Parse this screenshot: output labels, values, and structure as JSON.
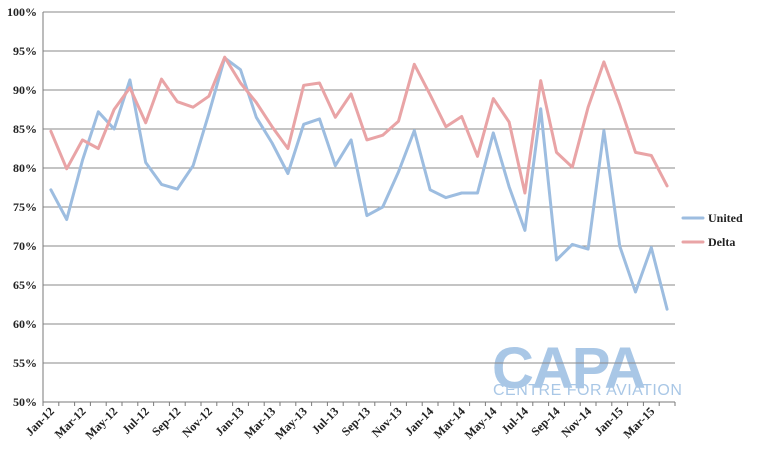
{
  "chart_data": {
    "type": "line",
    "categories": [
      "Jan-12",
      "Feb-12",
      "Mar-12",
      "Apr-12",
      "May-12",
      "Jun-12",
      "Jul-12",
      "Aug-12",
      "Sep-12",
      "Oct-12",
      "Nov-12",
      "Dec-12",
      "Jan-13",
      "Feb-13",
      "Mar-13",
      "Apr-13",
      "May-13",
      "Jun-13",
      "Jul-13",
      "Aug-13",
      "Sep-13",
      "Oct-13",
      "Nov-13",
      "Dec-13",
      "Jan-14",
      "Feb-14",
      "Mar-14",
      "Apr-14",
      "May-14",
      "Jun-14",
      "Jul-14",
      "Aug-14",
      "Sep-14",
      "Oct-14",
      "Nov-14",
      "Dec-14",
      "Jan-15",
      "Feb-15",
      "Mar-15",
      "Apr-15"
    ],
    "x_tick_labels": [
      "Jan-12",
      "Mar-12",
      "May-12",
      "Jul-12",
      "Sep-12",
      "Nov-12",
      "Jan-13",
      "Mar-13",
      "May-13",
      "Jul-13",
      "Sep-13",
      "Nov-13",
      "Jan-14",
      "Mar-14",
      "May-14",
      "Jul-14",
      "Sep-14",
      "Nov-14",
      "Jan-15",
      "Mar-15"
    ],
    "y_tick_labels": [
      "50%",
      "55%",
      "60%",
      "65%",
      "70%",
      "75%",
      "80%",
      "85%",
      "90%",
      "95%",
      "100%"
    ],
    "ylim": [
      50,
      100
    ],
    "grid": true,
    "legend_position": "right",
    "series": [
      {
        "name": "United",
        "color": "#9dbde0",
        "values": [
          77.2,
          73.4,
          81.0,
          87.2,
          85.0,
          91.3,
          80.7,
          77.9,
          77.3,
          80.3,
          87.0,
          94.1,
          92.6,
          86.5,
          83.2,
          79.3,
          85.6,
          86.3,
          80.3,
          83.6,
          73.9,
          75.0,
          79.5,
          84.8,
          77.2,
          76.2,
          76.8,
          76.8,
          84.5,
          77.6,
          72.0,
          87.6,
          68.2,
          70.2,
          69.6,
          84.8,
          70.0,
          64.1,
          69.8,
          61.9
        ]
      },
      {
        "name": "Delta",
        "color": "#e9a4a6",
        "values": [
          84.7,
          79.9,
          83.6,
          82.5,
          87.5,
          90.3,
          85.8,
          91.4,
          88.5,
          87.8,
          89.2,
          94.2,
          90.9,
          88.4,
          85.3,
          82.5,
          90.6,
          90.9,
          86.5,
          89.5,
          83.6,
          84.2,
          86.0,
          93.3,
          89.4,
          85.3,
          86.6,
          81.5,
          88.9,
          85.9,
          76.8,
          91.2,
          82.0,
          80.1,
          87.8,
          93.6,
          88.1,
          82.0,
          81.6,
          77.7
        ]
      }
    ],
    "watermark": {
      "main": "CAPA",
      "sub": "CENTRE FOR AVIATION"
    }
  }
}
